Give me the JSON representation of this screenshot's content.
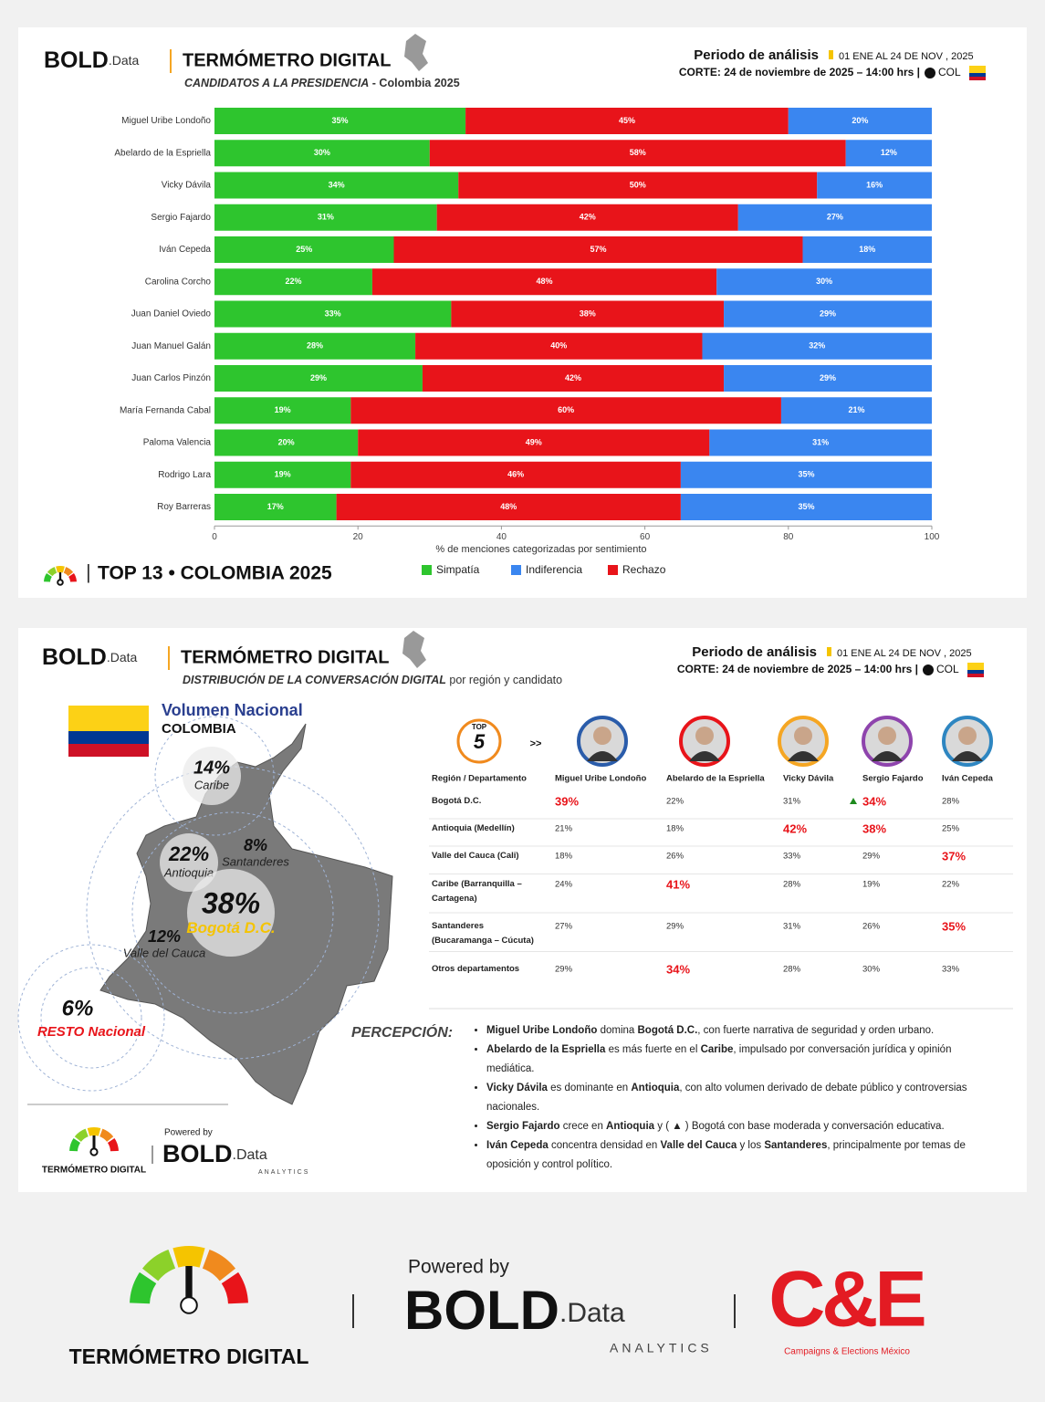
{
  "header": {
    "brand": "BOLD",
    "brand_suffix": ".Data",
    "title": "TERMÓMETRO DIGITAL",
    "period_label": "Periodo de análisis",
    "period": "01 ENE AL 24 DE NOV , 2025",
    "cut": "CORTE: 24 de noviembre de 2025 – 14:00 hrs |",
    "country": "COL"
  },
  "chart_data": {
    "type": "stacked_barh",
    "title": "CANDIDATOS A LA PRESIDENCIA",
    "subtitle": "- Colombia 2025",
    "categories": [
      "Miguel Uribe Londoño",
      "Abelardo de la Espriella",
      "Vicky Dávila",
      "Sergio Fajardo",
      "Iván Cepeda",
      "Carolina Corcho",
      "Juan Daniel Oviedo",
      "Juan Manuel Galán",
      "Juan Carlos Pinzón",
      "María Fernanda Cabal",
      "Paloma Valencia",
      "Rodrigo Lara",
      "Roy Barreras"
    ],
    "series": [
      {
        "name": "Simpatía",
        "color": "#2ec52e",
        "values": [
          35,
          30,
          34,
          31,
          25,
          22,
          33,
          28,
          29,
          19,
          20,
          19,
          17
        ],
        "value_labels": [
          "35%",
          "30%",
          "34%",
          "31%",
          "25%",
          "22%",
          "33%",
          "28%",
          "29%",
          "19%",
          "20%",
          "19%",
          "17%"
        ]
      },
      {
        "name": "Rechazo",
        "color": "#e8141a",
        "values": [
          45,
          58,
          50,
          42,
          57,
          48,
          38,
          40,
          42,
          60,
          49,
          46,
          48
        ],
        "value_labels": [
          "45%",
          "58%",
          "50%",
          "42%",
          "57%",
          "48%",
          "38%",
          "40%",
          "42%",
          "60%",
          "49%",
          "46%",
          "48%"
        ]
      },
      {
        "name": "Indiferencia",
        "color": "#3a86f0",
        "values": [
          20,
          12,
          16,
          27,
          18,
          30,
          29,
          32,
          29,
          21,
          31,
          35,
          35
        ],
        "value_labels": [
          "20%",
          "12%",
          "16%",
          "27%",
          "18%",
          "30%",
          "29%",
          "32%",
          "29%",
          "21%",
          "31%",
          "35%",
          "35%"
        ]
      }
    ],
    "xlim": [
      0,
      100
    ],
    "xticks": [
      0,
      20,
      40,
      60,
      80,
      100
    ],
    "xlabel": "% de menciones categorizadas por sentimiento",
    "caption": "TOP 13 • COLOMBIA 2025"
  },
  "panel2": {
    "subtitle": "DISTRIBUCIÓN DE LA CONVERSACIÓN DIGITAL",
    "subtitle_rest": "por región y candidato",
    "volume_title": "Volumen Nacional",
    "volume_country": "COLOMBIA",
    "bubbles": [
      {
        "share": "14%",
        "label": "Caribe"
      },
      {
        "share": "8%",
        "label": "Santanderes"
      },
      {
        "share": "22%",
        "label": "Antioquia"
      },
      {
        "share": "38%",
        "label": "Bogotá D.C."
      },
      {
        "share": "12%",
        "label": "Valle del Cauca"
      },
      {
        "share": "6%",
        "label": "RESTO Nacional"
      }
    ],
    "top_label": "TOP",
    "top_number": "5",
    "arrow": ">>",
    "table": {
      "header": [
        "Región / Departamento",
        "Miguel Uribe Londoño",
        "Abelardo de la Espriella",
        "Vicky Dávila",
        "Sergio Fajardo",
        "Iván Cepeda"
      ],
      "rows": [
        {
          "region": "Bogotá D.C.",
          "cells": [
            "39%",
            "22%",
            "31%",
            "34%",
            "28%"
          ],
          "highlight": [
            0,
            3
          ],
          "rising": [
            3
          ]
        },
        {
          "region": "Antioquia (Medellín)",
          "cells": [
            "21%",
            "18%",
            "42%",
            "38%",
            "25%"
          ],
          "highlight": [
            2,
            3
          ],
          "rising": []
        },
        {
          "region": "Valle del Cauca (Cali)",
          "cells": [
            "18%",
            "26%",
            "33%",
            "29%",
            "37%"
          ],
          "highlight": [
            4
          ],
          "rising": []
        },
        {
          "region": "Caribe (Barranquilla – Cartagena)",
          "cells": [
            "24%",
            "41%",
            "28%",
            "19%",
            "22%"
          ],
          "highlight": [
            1
          ],
          "rising": []
        },
        {
          "region": "Santanderes (Bucaramanga – Cúcuta)",
          "cells": [
            "27%",
            "29%",
            "31%",
            "26%",
            "35%"
          ],
          "highlight": [
            4
          ],
          "rising": []
        },
        {
          "region": "Otros departamentos",
          "cells": [
            "29%",
            "34%",
            "28%",
            "30%",
            "33%"
          ],
          "highlight": [
            1
          ],
          "rising": []
        }
      ]
    },
    "perception_label": "PERCEPCIÓN:",
    "perception": [
      [
        {
          "text": "Miguel Uribe Londoño",
          "bold": true
        },
        {
          "text": " domina ",
          "bold": false
        },
        {
          "text": "Bogotá D.C.",
          "bold": true
        },
        {
          "text": ", con fuerte narrativa de seguridad y orden urbano.",
          "bold": false
        }
      ],
      [
        {
          "text": "Abelardo de la Espriella",
          "bold": true
        },
        {
          "text": " es más fuerte en el ",
          "bold": false
        },
        {
          "text": "Caribe",
          "bold": true
        },
        {
          "text": ", impulsado por conversación jurídica y opinión mediática.",
          "bold": false
        }
      ],
      [
        {
          "text": "Vicky Dávila",
          "bold": true
        },
        {
          "text": " es dominante en ",
          "bold": false
        },
        {
          "text": "Antioquia",
          "bold": true
        },
        {
          "text": ", con alto volumen derivado de debate público y controversias nacionales.",
          "bold": false
        }
      ],
      [
        {
          "text": "Sergio Fajardo",
          "bold": true
        },
        {
          "text": " crece en ",
          "bold": false
        },
        {
          "text": "Antioquia",
          "bold": true
        },
        {
          "text": " y ( ▲ ) Bogotá con base moderada y conversación educativa.",
          "bold": false
        }
      ],
      [
        {
          "text": "Iván Cepeda",
          "bold": true
        },
        {
          "text": " concentra densidad en ",
          "bold": false
        },
        {
          "text": "Valle del Cauca",
          "bold": true
        },
        {
          "text": " y los ",
          "bold": false
        },
        {
          "text": "Santanderes",
          "bold": true
        },
        {
          "text": ", principalmente por temas de oposición y control político.",
          "bold": false
        }
      ]
    ]
  },
  "footer": {
    "logo_name": "TERMÓMETRO DIGITAL",
    "powered": "Powered by",
    "brand": "BOLD",
    "brand_suffix": ".Data",
    "analytics": "ANALYTICS",
    "partner": "C&E",
    "partner_sub": "Campaigns & Elections México"
  }
}
